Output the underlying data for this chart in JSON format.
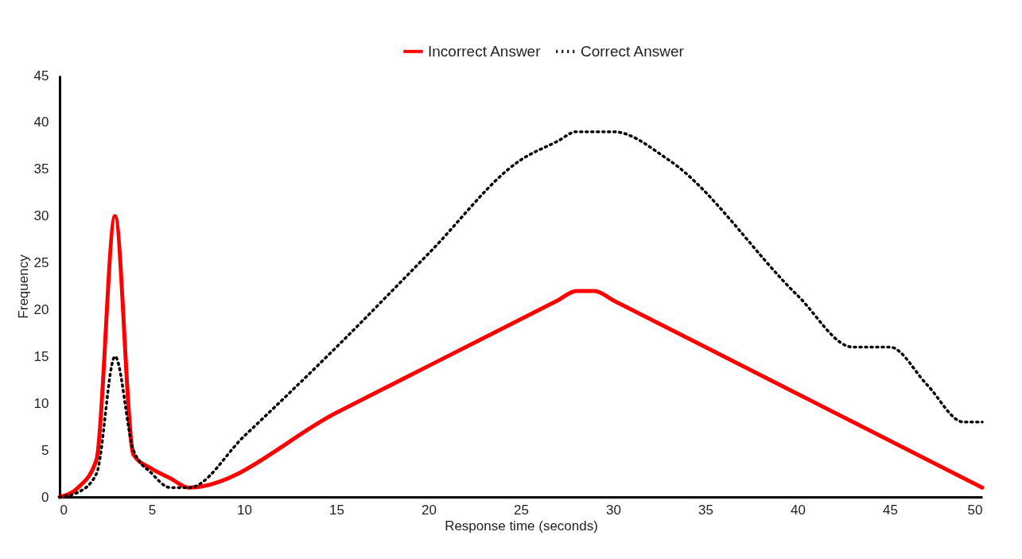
{
  "chart_data": {
    "type": "line",
    "xlabel": "Response time (seconds)",
    "ylabel": "Frequency",
    "xlim": [
      0,
      50
    ],
    "ylim": [
      0,
      45
    ],
    "xticks": [
      0,
      5,
      10,
      15,
      20,
      25,
      30,
      35,
      40,
      45,
      50
    ],
    "yticks": [
      0,
      5,
      10,
      15,
      20,
      25,
      30,
      35,
      40,
      45
    ],
    "grid": false,
    "legend": "top",
    "marker": "none",
    "series": [
      {
        "name": "Incorrect Answer",
        "color": "#ff0000",
        "line_style": "solid",
        "x": [
          0,
          1,
          2,
          3,
          4,
          5,
          6,
          7,
          15,
          20,
          27,
          28,
          29,
          30,
          40,
          50
        ],
        "values": [
          0,
          1,
          4,
          30,
          4.5,
          3,
          2,
          1,
          9,
          14,
          21,
          22,
          22,
          21,
          11,
          1
        ]
      },
      {
        "name": "Correct Answer",
        "color": "#000000",
        "line_style": "dotted",
        "x": [
          0,
          1,
          2,
          3,
          4,
          5,
          6,
          7,
          10,
          15,
          20,
          25,
          27,
          28,
          30,
          33,
          40,
          43,
          45,
          47,
          49,
          50
        ],
        "values": [
          0,
          0.5,
          2.5,
          15,
          5,
          2.5,
          1,
          1,
          6.5,
          16,
          26,
          36,
          38,
          39,
          39,
          36,
          21.5,
          16,
          16,
          12,
          8,
          8
        ]
      }
    ]
  }
}
